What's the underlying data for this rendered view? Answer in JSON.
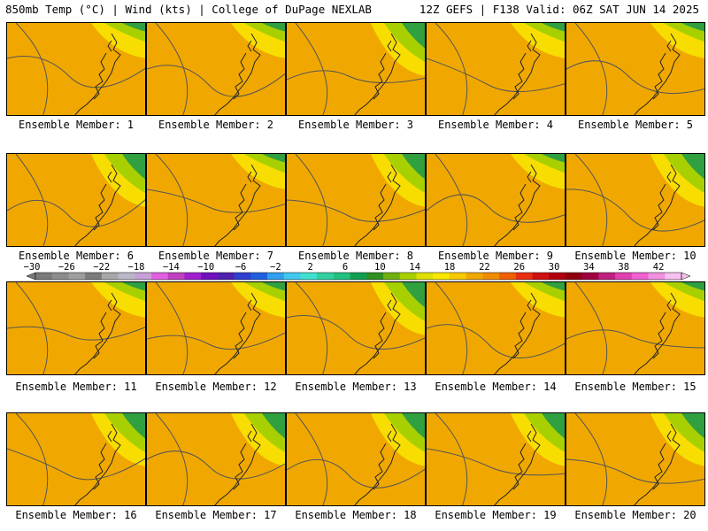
{
  "header": {
    "left": "850mb Temp (°C) | Wind (kts) | College of DuPage NEXLAB",
    "right": "12Z GEFS | F138 Valid: 06Z SAT JUN 14 2025"
  },
  "panels": [
    {
      "label": "Ensemble Member: 1"
    },
    {
      "label": "Ensemble Member: 2"
    },
    {
      "label": "Ensemble Member: 3"
    },
    {
      "label": "Ensemble Member: 4"
    },
    {
      "label": "Ensemble Member: 5"
    },
    {
      "label": "Ensemble Member: 6"
    },
    {
      "label": "Ensemble Member: 7"
    },
    {
      "label": "Ensemble Member: 8"
    },
    {
      "label": "Ensemble Member: 9"
    },
    {
      "label": "Ensemble Member: 10"
    },
    {
      "label": "Ensemble Member: 11"
    },
    {
      "label": "Ensemble Member: 12"
    },
    {
      "label": "Ensemble Member: 13"
    },
    {
      "label": "Ensemble Member: 14"
    },
    {
      "label": "Ensemble Member: 15"
    },
    {
      "label": "Ensemble Member: 16"
    },
    {
      "label": "Ensemble Member: 17"
    },
    {
      "label": "Ensemble Member: 18"
    },
    {
      "label": "Ensemble Member: 19"
    },
    {
      "label": "Ensemble Member: 20"
    }
  ],
  "colorbar": {
    "tick_labels": [
      "−30",
      "−26",
      "−22",
      "−18",
      "−14",
      "−10",
      "−6",
      "−2",
      "2",
      "6",
      "10",
      "14",
      "18",
      "22",
      "26",
      "30",
      "34",
      "38",
      "42"
    ],
    "colors": [
      "#7a7a7a",
      "#8c8c8c",
      "#9e9e9e",
      "#7c7c7c",
      "#a8a8a8",
      "#b8b8c8",
      "#c8a0d8",
      "#e060e0",
      "#c040c0",
      "#a020d0",
      "#7010c0",
      "#5020b0",
      "#3040d0",
      "#2060e0",
      "#30a0f0",
      "#40c8f0",
      "#40e0d0",
      "#30d0a0",
      "#20c080",
      "#10a050",
      "#309020",
      "#70b010",
      "#a8d000",
      "#e0e000",
      "#f8e800",
      "#f8c800",
      "#f0a800",
      "#f08c00",
      "#f06000",
      "#e83010",
      "#d01010",
      "#b00010",
      "#900010",
      "#a00040",
      "#c02080",
      "#e040b0",
      "#f060d0",
      "#f090e0",
      "#f8c0f0"
    ]
  }
}
